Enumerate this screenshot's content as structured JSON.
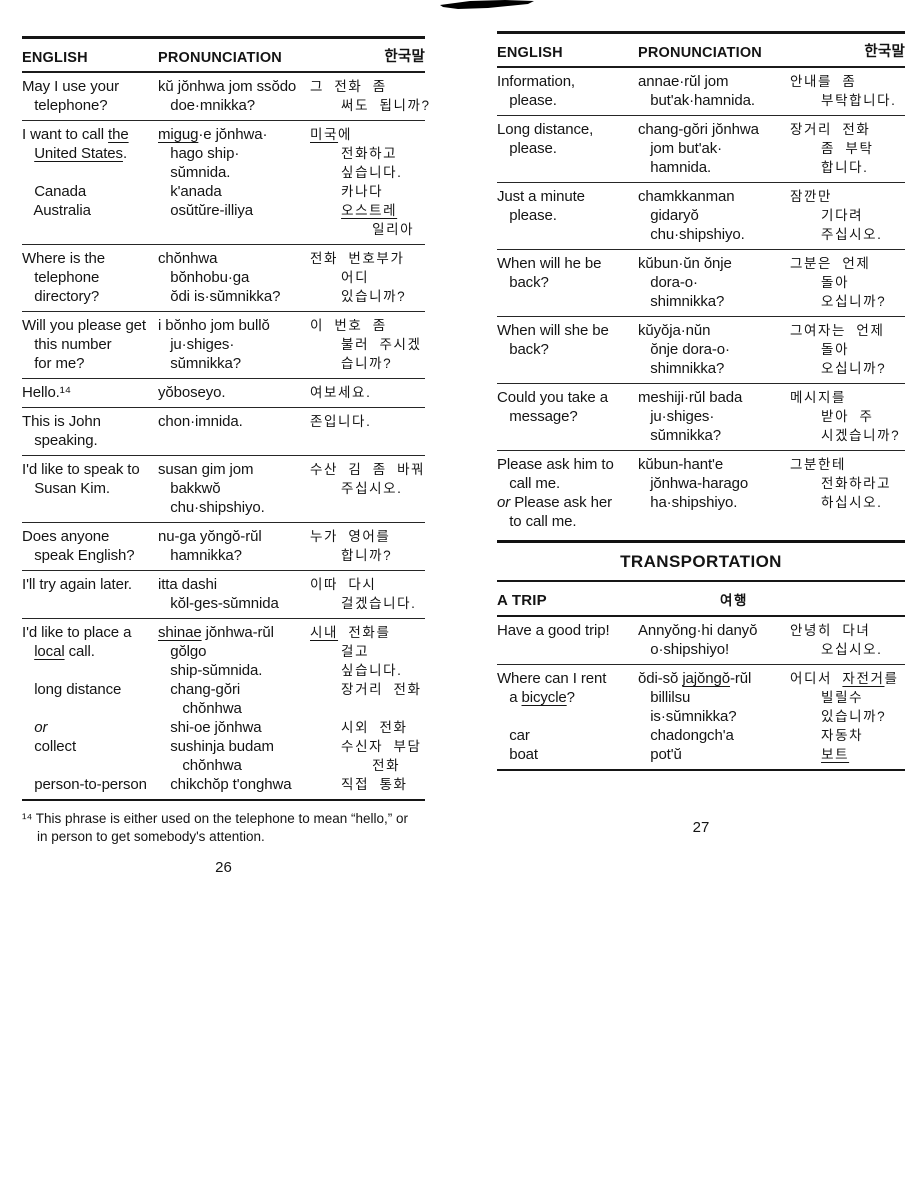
{
  "left_page": {
    "header": {
      "english": "ENGLISH",
      "pronunciation": "PRONUNCIATION",
      "korean": "한국말"
    },
    "rows": [
      {
        "en": [
          "May I use your",
          "   telephone?"
        ],
        "pr": [
          "kŭ jŏnhwa jom ssŏdo",
          "   doe·mnikka?"
        ],
        "ko": [
          "그 전화 좀",
          "   써도 됩니까?"
        ]
      },
      {
        "en": [
          "I want to call __the__",
          "   __United States__.",
          "",
          "   Canada",
          "   Australia"
        ],
        "pr": [
          "__migug__·e jŏnhwa·",
          "   hago ship·",
          "   sŭmnida.",
          "   k'anada",
          "   osŭtŭre-illiya"
        ],
        "ko": [
          "__미국__에",
          "   전화하고",
          "   싶습니다.",
          "   카나다",
          "   __오스트레__",
          "      일리아"
        ]
      },
      {
        "en": [
          "Where is the",
          "   telephone",
          "   directory?"
        ],
        "pr": [
          "chŏnhwa",
          "   bŏnhobu·ga",
          "   ŏdi is·sŭmnikka?"
        ],
        "ko": [
          "전화 번호부가",
          "   어디",
          "   있습니까?"
        ]
      },
      {
        "en": [
          "Will you please get",
          "   this number",
          "   for me?"
        ],
        "pr": [
          "i bŏnho jom bullŏ",
          "   ju·shiges·",
          "   sŭmnikka?"
        ],
        "ko": [
          "이 번호 좀",
          "   불러 주시겠",
          "   습니까?"
        ]
      },
      {
        "en": [
          "Hello.¹⁴"
        ],
        "pr": [
          "yŏboseyo."
        ],
        "ko": [
          "여보세요."
        ]
      },
      {
        "en": [
          "This is John",
          "   speaking."
        ],
        "pr": [
          "chon·imnida."
        ],
        "ko": [
          "존입니다."
        ]
      },
      {
        "en": [
          "I'd like to speak to",
          "   Susan Kim."
        ],
        "pr": [
          "susan gim jom",
          "   bakkwŏ",
          "   chu·shipshiyo."
        ],
        "ko": [
          "수산 김 좀 바꿔",
          "   주십시오."
        ]
      },
      {
        "en": [
          "Does anyone",
          "   speak English?"
        ],
        "pr": [
          "nu-ga yŏngŏ-rŭl",
          "   hamnikka?"
        ],
        "ko": [
          "누가 영어를",
          "   합니까?"
        ]
      },
      {
        "en": [
          "I'll try again later."
        ],
        "pr": [
          "itta dashi",
          "   kŏl-ges-sŭmnida"
        ],
        "ko": [
          "이따 다시",
          "   걸겠습니다."
        ]
      },
      {
        "en": [
          "I'd like to place a",
          "   __local__ call.",
          "",
          "   long distance",
          "",
          "   *or*",
          "   collect",
          "",
          "   person-to-person"
        ],
        "pr": [
          "__shinae__ jŏnhwa-rŭl",
          "   gŏlgo",
          "   ship-sŭmnida.",
          "   chang-gŏri",
          "      chŏnhwa",
          "   shi-oe jŏnhwa",
          "   sushinja budam",
          "      chŏnhwa",
          "   chikchŏp t'onghwa"
        ],
        "ko": [
          "__시내__ 전화를",
          "   걸고",
          "   싶습니다.",
          "   장거리 전화",
          "",
          "   시외 전화",
          "   수신자 부담",
          "      전화",
          "   직접 통화"
        ]
      }
    ],
    "footnote_lines": [
      "¹⁴ This phrase is either used on the telephone to mean “hello,” or",
      "    in person to get somebody's attention."
    ],
    "page_number": "26"
  },
  "right_page": {
    "header": {
      "english": "ENGLISH",
      "pronunciation": "PRONUNCIATION",
      "korean": "한국말"
    },
    "rows": [
      {
        "en": [
          "Information,",
          "   please."
        ],
        "pr": [
          "annae·rŭl jom",
          "   but'ak·hamnida."
        ],
        "ko": [
          "안내를 좀",
          "   부탁합니다."
        ]
      },
      {
        "en": [
          "Long distance,",
          "   please."
        ],
        "pr": [
          "chang-gŏri jŏnhwa",
          "   jom but'ak·",
          "   hamnida."
        ],
        "ko": [
          "장거리 전화",
          "   좀 부탁",
          "   합니다."
        ]
      },
      {
        "en": [
          "Just a minute",
          "   please."
        ],
        "pr": [
          "chamkkanman",
          "   gidaryŏ",
          "   chu·shipshiyo."
        ],
        "ko": [
          "잠깐만",
          "   기다려",
          "   주십시오."
        ]
      },
      {
        "en": [
          "When will he be",
          "   back?"
        ],
        "pr": [
          "kŭbun·ŭn ŏnje",
          "   dora-o·",
          "   shimnikka?"
        ],
        "ko": [
          "그분은 언제",
          "   돌아",
          "   오십니까?"
        ]
      },
      {
        "en": [
          "When will she be",
          "   back?"
        ],
        "pr": [
          "kŭyŏja·nŭn",
          "   ŏnje dora-o·",
          "   shimnikka?"
        ],
        "ko": [
          "그여자는 언제",
          "   돌아",
          "   오십니까?"
        ]
      },
      {
        "en": [
          "Could you take a",
          "   message?"
        ],
        "pr": [
          "meshiji·rŭl bada",
          "   ju·shiges·",
          "   sŭmnikka?"
        ],
        "ko": [
          "메시지를",
          "   받아 주",
          "   시겠습니까?"
        ]
      },
      {
        "en": [
          "Please ask him to",
          "   call me.",
          "*or* Please ask her",
          "   to call me."
        ],
        "pr": [
          "kŭbun-hant'e",
          "   jŏnhwa-harago",
          "   ha·shipshiyo."
        ],
        "ko": [
          "그분한테",
          "   전화하라고",
          "   하십시오."
        ]
      }
    ],
    "section_title": "TRANSPORTATION",
    "subsection": {
      "title": "A TRIP",
      "korean": "여행"
    },
    "trip_rows": [
      {
        "en": [
          "Have a good trip!"
        ],
        "pr": [
          "Annyŏng·hi danyŏ",
          "   o·shipshiyo!"
        ],
        "ko": [
          "안녕히 다녀",
          "   오십시오."
        ]
      },
      {
        "en": [
          "Where can I rent",
          "   a __bicycle__?",
          "",
          "   car",
          "   boat"
        ],
        "pr": [
          "ŏdi-sŏ __jajŏngŏ__-rŭl",
          "   billilsu",
          "   is·sŭmnikka?",
          "   chadongch'a",
          "   pot'ŭ"
        ],
        "ko": [
          "어디서 __자전거__를",
          "   빌릴수",
          "   있습니까?",
          "   자동차",
          "   __보트__"
        ]
      }
    ],
    "page_number": "27"
  }
}
